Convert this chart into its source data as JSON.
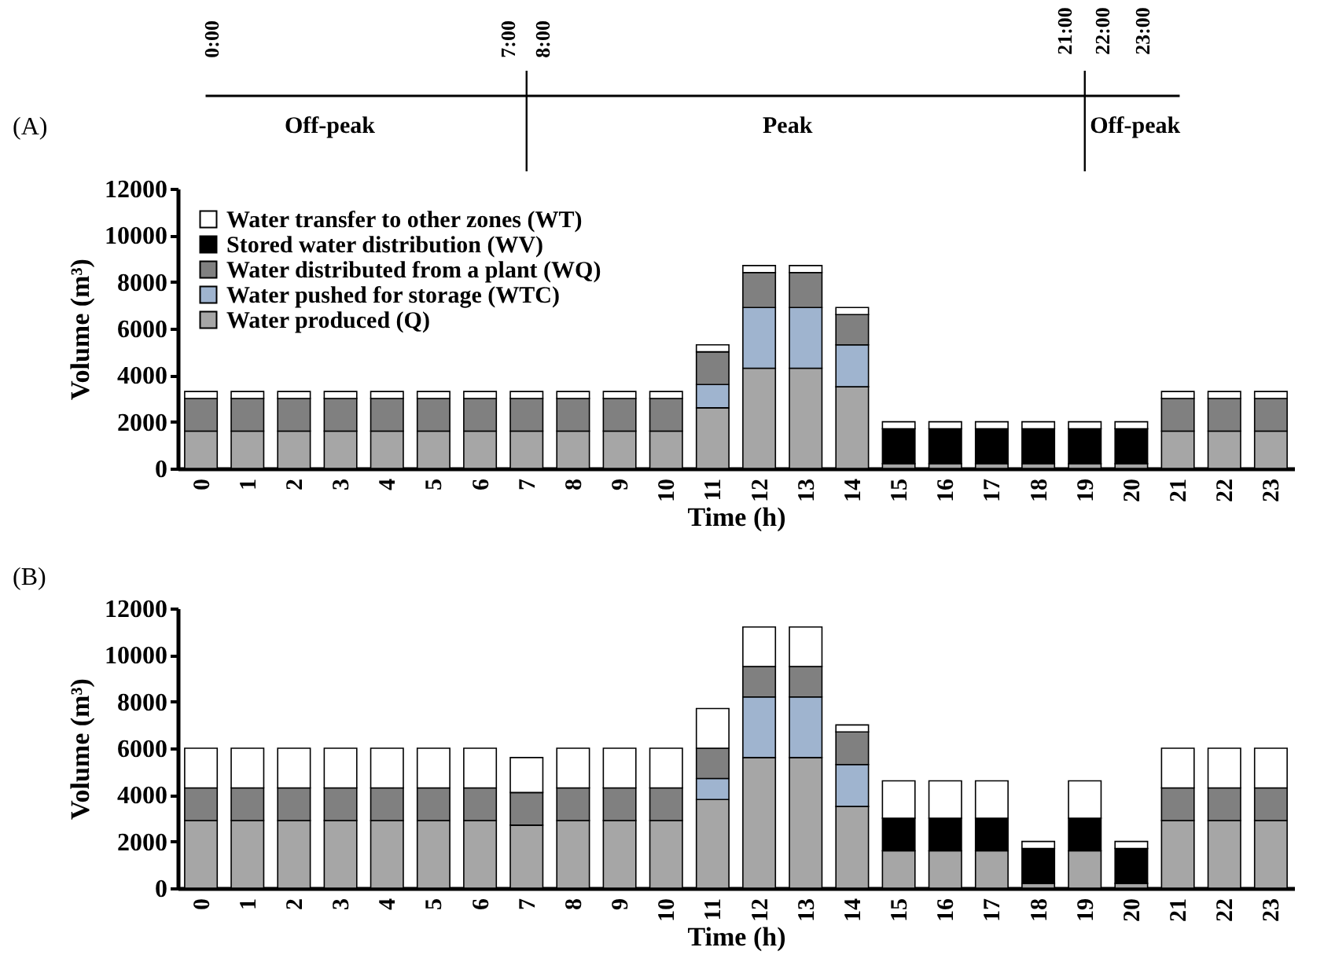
{
  "chart_data": [
    {
      "type": "bar",
      "title": "(A)",
      "xlabel": "Time (h)",
      "ylabel": "Volume (m³)",
      "stacked": true,
      "legend": "top left",
      "categories": [
        "0",
        "1",
        "2",
        "3",
        "4",
        "5",
        "6",
        "7",
        "8",
        "9",
        "10",
        "11",
        "12",
        "13",
        "14",
        "15",
        "16",
        "17",
        "18",
        "19",
        "20",
        "21",
        "22",
        "23"
      ],
      "ylim": [
        0,
        12000
      ],
      "yticks": [
        0,
        2000,
        4000,
        6000,
        8000,
        10000,
        12000
      ],
      "series": [
        {
          "name": "Water produced (Q)",
          "color": "#a6a6a6",
          "values": [
            1600,
            1600,
            1600,
            1600,
            1600,
            1600,
            1600,
            1600,
            1600,
            1600,
            1600,
            2600,
            4300,
            4300,
            3500,
            200,
            200,
            200,
            200,
            200,
            200,
            1600,
            1600,
            1600
          ]
        },
        {
          "name": "Water pushed for storage (WTC)",
          "color": "#9fb4cf",
          "values": [
            null,
            null,
            null,
            null,
            null,
            null,
            null,
            null,
            null,
            null,
            null,
            1000,
            2600,
            2600,
            1800,
            null,
            null,
            null,
            null,
            null,
            null,
            null,
            null,
            null
          ]
        },
        {
          "name": "Water distributed from a plant (WQ)",
          "color": "#808080",
          "values": [
            1400,
            1400,
            1400,
            1400,
            1400,
            1400,
            1400,
            1400,
            1400,
            1400,
            1400,
            1400,
            1500,
            1500,
            1300,
            null,
            null,
            null,
            null,
            null,
            null,
            1400,
            1400,
            1400
          ]
        },
        {
          "name": "Stored water distribution (WV)",
          "color": "#000000",
          "values": [
            null,
            null,
            null,
            null,
            null,
            null,
            null,
            null,
            null,
            null,
            null,
            null,
            null,
            null,
            null,
            1500,
            1500,
            1500,
            1500,
            1500,
            1500,
            null,
            null,
            null
          ]
        },
        {
          "name": "Water transfer to other zones (WT)",
          "color": "#ffffff",
          "values": [
            300,
            300,
            300,
            300,
            300,
            300,
            300,
            300,
            300,
            300,
            300,
            300,
            300,
            300,
            300,
            300,
            300,
            300,
            300,
            300,
            300,
            300,
            300,
            300
          ]
        }
      ],
      "annotations": [
        "Off-peak",
        "Peak",
        "Off-peak",
        "0:00",
        "7:00",
        "8:00",
        "21:00",
        "22:00",
        "23:00"
      ]
    },
    {
      "type": "bar",
      "title": "(B)",
      "xlabel": "Time (h)",
      "ylabel": "Volume (m³)",
      "stacked": true,
      "categories": [
        "0",
        "1",
        "2",
        "3",
        "4",
        "5",
        "6",
        "7",
        "8",
        "9",
        "10",
        "11",
        "12",
        "13",
        "14",
        "15",
        "16",
        "17",
        "18",
        "19",
        "20",
        "21",
        "22",
        "23"
      ],
      "ylim": [
        0,
        12000
      ],
      "yticks": [
        0,
        2000,
        4000,
        6000,
        8000,
        10000,
        12000
      ],
      "series": [
        {
          "color": "#a6a6a6",
          "values": [
            2900,
            2900,
            2900,
            2900,
            2900,
            2900,
            2900,
            2700,
            2900,
            2900,
            2900,
            3800,
            5600,
            5600,
            3500,
            1600,
            1600,
            1600,
            200,
            1600,
            200,
            2900,
            2900,
            2900
          ]
        },
        {
          "color": "#9fb4cf",
          "values": [
            null,
            null,
            null,
            null,
            null,
            null,
            null,
            null,
            null,
            null,
            null,
            900,
            2600,
            2600,
            1800,
            null,
            null,
            null,
            null,
            null,
            null,
            null,
            null,
            null
          ]
        },
        {
          "color": "#808080",
          "values": [
            1400,
            1400,
            1400,
            1400,
            1400,
            1400,
            1400,
            1400,
            1400,
            1400,
            1400,
            1300,
            1300,
            1300,
            1400,
            null,
            null,
            null,
            null,
            null,
            null,
            1400,
            1400,
            1400
          ]
        },
        {
          "color": "#000000",
          "values": [
            null,
            null,
            null,
            null,
            null,
            null,
            null,
            null,
            null,
            null,
            null,
            null,
            null,
            null,
            null,
            1400,
            1400,
            1400,
            1500,
            1400,
            1500,
            null,
            null,
            null
          ]
        },
        {
          "color": "#ffffff",
          "values": [
            1700,
            1700,
            1700,
            1700,
            1700,
            1700,
            1700,
            1500,
            1700,
            1700,
            1700,
            1700,
            1700,
            1700,
            300,
            1600,
            1600,
            1600,
            300,
            1600,
            300,
            1700,
            1700,
            1700
          ]
        }
      ]
    }
  ]
}
